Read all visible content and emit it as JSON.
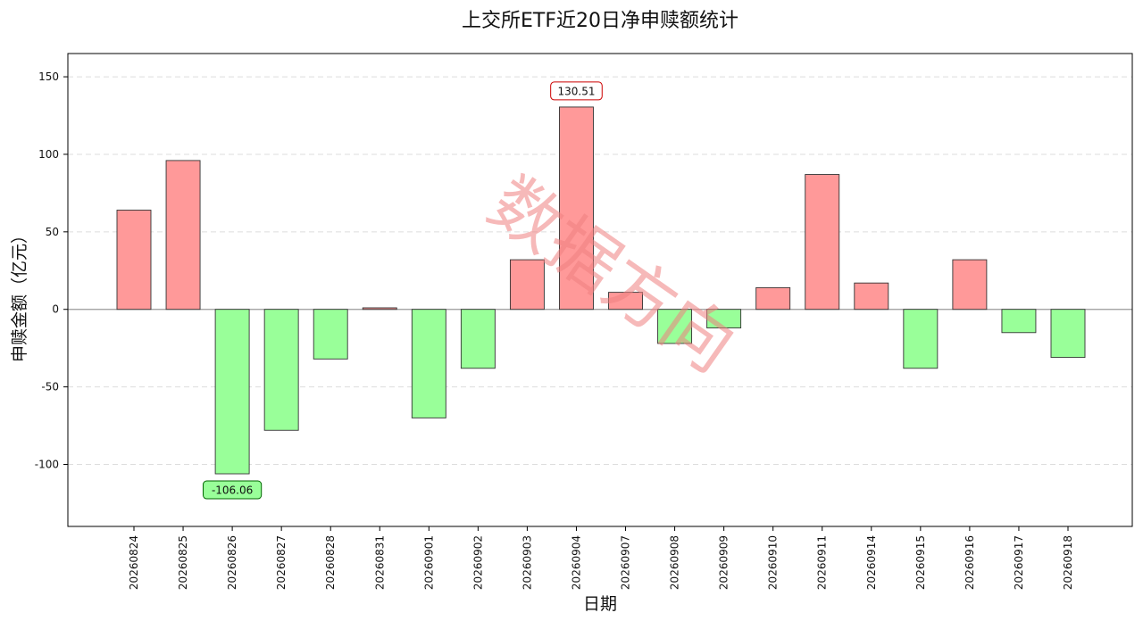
{
  "chart_data": {
    "type": "bar",
    "title": "上交所ETF近20日净申赎额统计",
    "xlabel": "日期",
    "ylabel": "申赎金额（亿元）",
    "ylim": [
      -140,
      165
    ],
    "yticks": [
      -100,
      -50,
      0,
      50,
      100,
      150
    ],
    "grid": "horizontal dashed",
    "categories": [
      "20260824",
      "20260825",
      "20260826",
      "20260827",
      "20260828",
      "20260831",
      "20260901",
      "20260902",
      "20260903",
      "20260904",
      "20260907",
      "20260908",
      "20260909",
      "20260910",
      "20260911",
      "20260914",
      "20260915",
      "20260916",
      "20260917",
      "20260918"
    ],
    "values": [
      64,
      96,
      -106.06,
      -78,
      -32,
      1,
      -70,
      -38,
      32,
      130.51,
      11,
      -22,
      -12,
      14,
      87,
      17,
      -38,
      32,
      -15,
      -31
    ],
    "annotations": [
      {
        "category": "20260904",
        "label": "130.51",
        "color": "#ff9999"
      },
      {
        "category": "20260826",
        "label": "-106.06",
        "color": "#99ff99"
      }
    ],
    "colors": {
      "positive": "#ff9999",
      "negative": "#99ff99",
      "edge": "#333333",
      "max_text": "#cc0000",
      "min_text": "#006600"
    },
    "watermark": "数据方向"
  }
}
